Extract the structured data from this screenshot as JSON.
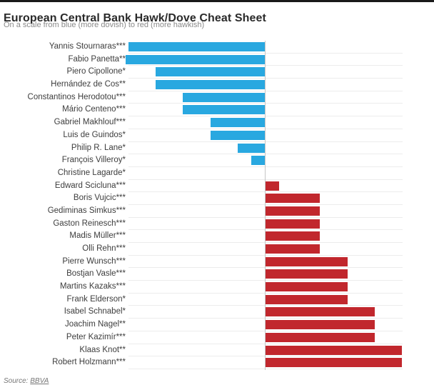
{
  "chart_data": {
    "type": "bar",
    "orientation": "horizontal-diverging",
    "title": "European Central Bank Hawk/Dove Cheat Sheet",
    "subtitle": "On a scale from blue (more dovish) to red (more hawkish)",
    "source_label": "Source:",
    "source_link_text": "BBVA",
    "xlim": [
      -10,
      10
    ],
    "center_value": 0,
    "grid": "horizontal-light",
    "legend": "none",
    "dove_color": "#29a8e0",
    "hawk_color": "#c1272d",
    "categories": [
      "Yannis Stournaras***",
      "Fabio Panetta**",
      "Piero Cipollone*",
      "Hernández de Cos**",
      "Constantinos Herodotou***",
      "Mário Centeno***",
      "Gabriel Makhlouf***",
      "Luis de Guindos*",
      "Philip R. Lane*",
      "François Villeroy*",
      "Christine Lagarde*",
      "Edward Scicluna***",
      "Boris Vujcic***",
      "Gediminas Simkus***",
      "Gaston Reinesch***",
      "Madis Müller***",
      "Olli Rehn***",
      "Pierre Wunsch***",
      "Bostjan Vasle***",
      "Martins Kazaks***",
      "Frank Elderson*",
      "Isabel Schnabel*",
      "Joachim Nagel**",
      "Peter Kazimír***",
      "Klaas Knot**",
      "Robert Holzmann***"
    ],
    "values": [
      -10,
      -10.2,
      -8,
      -8,
      -6,
      -6,
      -4,
      -4,
      -2,
      -1,
      0,
      1,
      4,
      4,
      4,
      4,
      4,
      6,
      6,
      6,
      6,
      8,
      8,
      8,
      10,
      10
    ]
  }
}
